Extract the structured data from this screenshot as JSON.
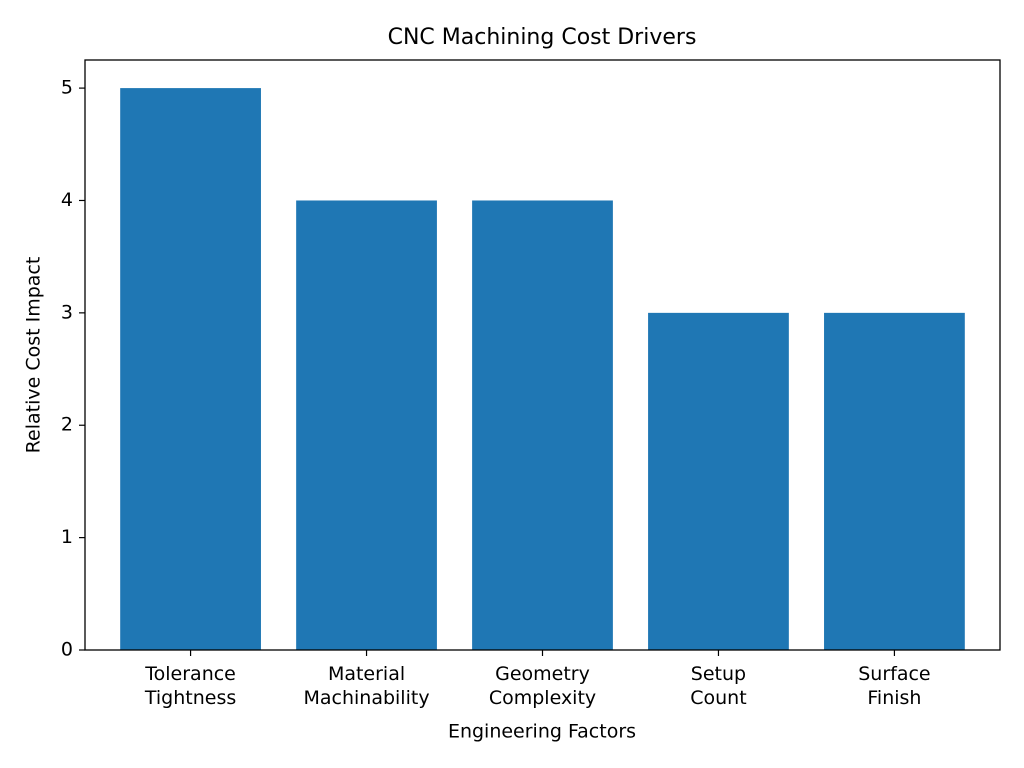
{
  "chart_data": {
    "type": "bar",
    "title": "CNC Machining Cost Drivers",
    "x_label": "Engineering Factors",
    "y_label": "Relative Cost Impact",
    "categories": [
      "Tolerance\nTightness",
      "Material\nMachinability",
      "Geometry\nComplexity",
      "Setup\nCount",
      "Surface\nFinish"
    ],
    "values": [
      5,
      4,
      4,
      3,
      3
    ],
    "color": "#1f77b4",
    "ylim": [
      0,
      5.25
    ],
    "yticks": [
      0,
      1,
      2,
      3,
      4,
      5
    ],
    "grid": false
  }
}
